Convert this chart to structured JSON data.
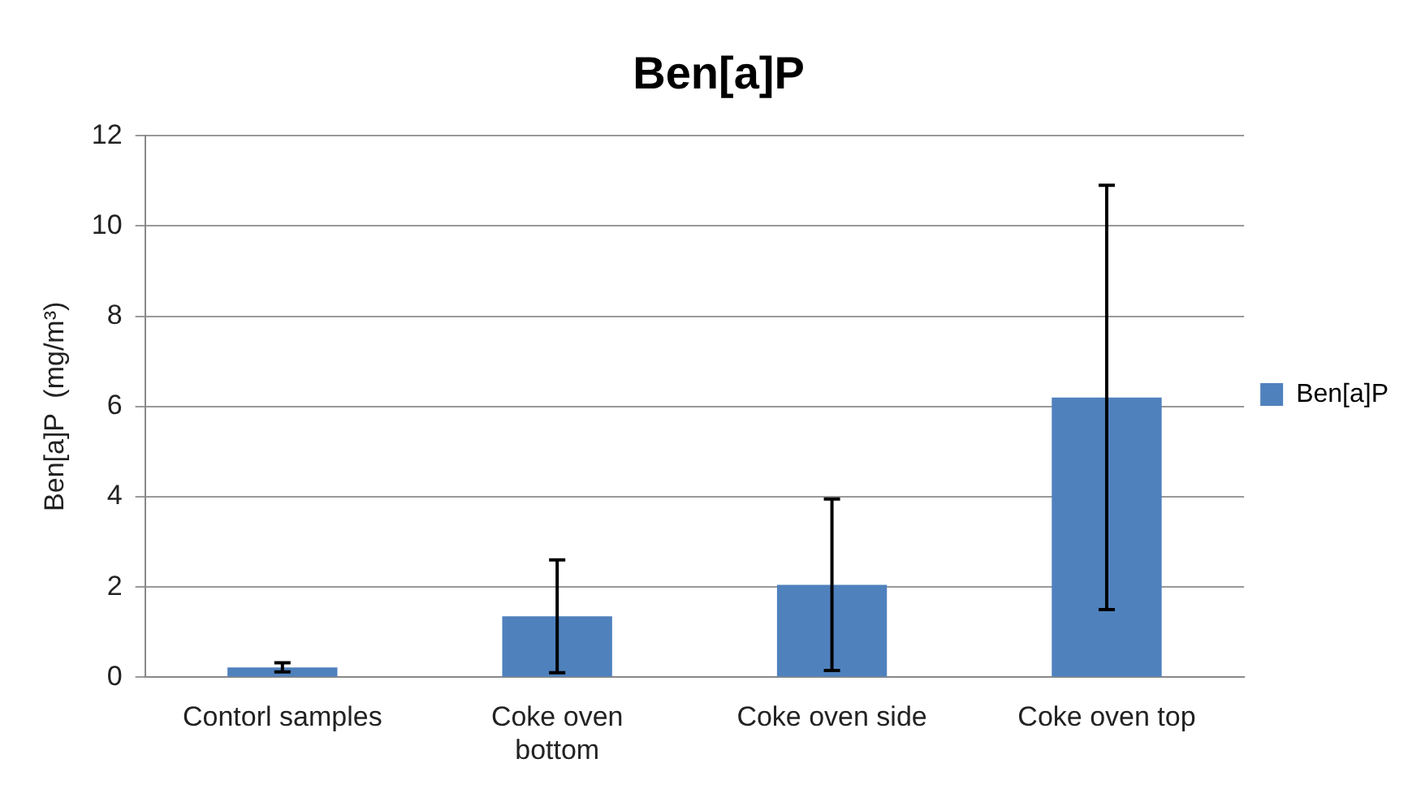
{
  "chart_data": {
    "type": "bar",
    "title": "Ben[a]P",
    "ylabel": "Ben[a]P  (mg/m³)",
    "categories": [
      "Contorl samples",
      "Coke oven bottom",
      "Coke oven side",
      "Coke oven top"
    ],
    "series": [
      {
        "name": "Ben[a]P",
        "color": "#4f81bd",
        "values": [
          0.22,
          1.35,
          2.05,
          6.2
        ],
        "errors": [
          0.1,
          1.25,
          1.9,
          4.7
        ]
      }
    ],
    "ylim": [
      0,
      12
    ],
    "yticks": [
      0,
      2,
      4,
      6,
      8,
      10,
      12
    ],
    "grid": "y",
    "legend": "right"
  }
}
